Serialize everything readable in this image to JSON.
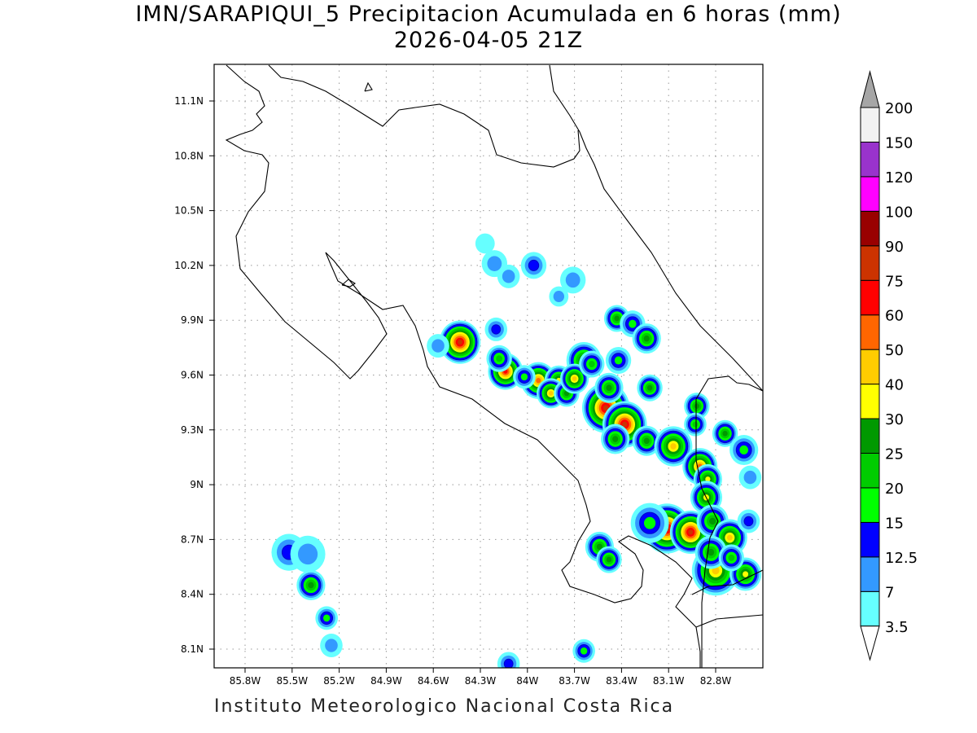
{
  "title": "IMN/SARAPIQUI_5 Precipitacion Acumulada en 6 horas (mm)",
  "subtitle": "2026-04-05 21Z",
  "footer": "Instituto Meteorologico Nacional Costa Rica",
  "map": {
    "lon_ticks": [
      "85.8W",
      "85.5W",
      "85.2W",
      "84.9W",
      "84.6W",
      "84.3W",
      "84W",
      "83.7W",
      "83.4W",
      "83.1W",
      "82.8W"
    ],
    "lat_ticks": [
      "11.1N",
      "10.8N",
      "10.5N",
      "10.2N",
      "9.9N",
      "9.6N",
      "9.3N",
      "9N",
      "8.7N",
      "8.4N",
      "8.1N"
    ],
    "lon_range": [
      -85.97,
      -82.43
    ],
    "lat_range": [
      8.0,
      11.3
    ],
    "cells": [
      {
        "lon": -84.43,
        "lat": 9.78,
        "peak": 75,
        "size": 0.09
      },
      {
        "lon": -84.57,
        "lat": 9.76,
        "peak": 7,
        "size": 0.03
      },
      {
        "lon": -84.14,
        "lat": 9.62,
        "peak": 60,
        "size": 0.07
      },
      {
        "lon": -84.18,
        "lat": 9.69,
        "peak": 20,
        "size": 0.04
      },
      {
        "lon": -83.93,
        "lat": 9.57,
        "peak": 50,
        "size": 0.07
      },
      {
        "lon": -83.8,
        "lat": 9.57,
        "peak": 30,
        "size": 0.05
      },
      {
        "lon": -83.85,
        "lat": 9.5,
        "peak": 40,
        "size": 0.05
      },
      {
        "lon": -83.75,
        "lat": 9.5,
        "peak": 25,
        "size": 0.04
      },
      {
        "lon": -83.64,
        "lat": 9.68,
        "peak": 30,
        "size": 0.07
      },
      {
        "lon": -83.7,
        "lat": 9.58,
        "peak": 40,
        "size": 0.05
      },
      {
        "lon": -83.59,
        "lat": 9.66,
        "peak": 20,
        "size": 0.04
      },
      {
        "lon": -83.5,
        "lat": 9.42,
        "peak": 75,
        "size": 0.11
      },
      {
        "lon": -83.38,
        "lat": 9.33,
        "peak": 75,
        "size": 0.1
      },
      {
        "lon": -83.44,
        "lat": 9.25,
        "peak": 25,
        "size": 0.05
      },
      {
        "lon": -83.48,
        "lat": 9.53,
        "peak": 25,
        "size": 0.05
      },
      {
        "lon": -83.42,
        "lat": 9.68,
        "peak": 15,
        "size": 0.04
      },
      {
        "lon": -83.43,
        "lat": 9.91,
        "peak": 25,
        "size": 0.04
      },
      {
        "lon": -83.33,
        "lat": 9.88,
        "peak": 15,
        "size": 0.04
      },
      {
        "lon": -83.24,
        "lat": 9.8,
        "peak": 25,
        "size": 0.05
      },
      {
        "lon": -83.22,
        "lat": 9.53,
        "peak": 25,
        "size": 0.04
      },
      {
        "lon": -83.24,
        "lat": 9.24,
        "peak": 25,
        "size": 0.05
      },
      {
        "lon": -83.07,
        "lat": 9.21,
        "peak": 40,
        "size": 0.08
      },
      {
        "lon": -82.9,
        "lat": 9.1,
        "peak": 50,
        "size": 0.07
      },
      {
        "lon": -82.92,
        "lat": 9.43,
        "peak": 25,
        "size": 0.04
      },
      {
        "lon": -82.93,
        "lat": 9.33,
        "peak": 20,
        "size": 0.03
      },
      {
        "lon": -82.74,
        "lat": 9.28,
        "peak": 25,
        "size": 0.04
      },
      {
        "lon": -82.85,
        "lat": 9.03,
        "peak": 30,
        "size": 0.05
      },
      {
        "lon": -82.86,
        "lat": 8.93,
        "peak": 30,
        "size": 0.06
      },
      {
        "lon": -83.11,
        "lat": 8.76,
        "peak": 75,
        "size": 0.11
      },
      {
        "lon": -82.96,
        "lat": 8.74,
        "peak": 75,
        "size": 0.09
      },
      {
        "lon": -83.22,
        "lat": 8.79,
        "peak": 15,
        "size": 0.08
      },
      {
        "lon": -82.82,
        "lat": 8.8,
        "peak": 25,
        "size": 0.06
      },
      {
        "lon": -82.71,
        "lat": 8.71,
        "peak": 40,
        "size": 0.07
      },
      {
        "lon": -82.8,
        "lat": 8.53,
        "peak": 40,
        "size": 0.11
      },
      {
        "lon": -82.83,
        "lat": 8.63,
        "peak": 25,
        "size": 0.06
      },
      {
        "lon": -82.61,
        "lat": 8.51,
        "peak": 30,
        "size": 0.06
      },
      {
        "lon": -82.7,
        "lat": 8.6,
        "peak": 20,
        "size": 0.04
      },
      {
        "lon": -82.62,
        "lat": 9.19,
        "peak": 15,
        "size": 0.05
      },
      {
        "lon": -82.59,
        "lat": 8.8,
        "peak": 12.5,
        "size": 0.03
      },
      {
        "lon": -82.58,
        "lat": 9.04,
        "peak": 7,
        "size": 0.03
      },
      {
        "lon": -83.54,
        "lat": 8.66,
        "peak": 25,
        "size": 0.05
      },
      {
        "lon": -83.48,
        "lat": 8.59,
        "peak": 25,
        "size": 0.04
      },
      {
        "lon": -85.52,
        "lat": 8.63,
        "peak": 12.5,
        "size": 0.07
      },
      {
        "lon": -85.4,
        "lat": 8.62,
        "peak": 7,
        "size": 0.07
      },
      {
        "lon": -85.38,
        "lat": 8.45,
        "peak": 25,
        "size": 0.05
      },
      {
        "lon": -85.28,
        "lat": 8.27,
        "peak": 15,
        "size": 0.03
      },
      {
        "lon": -85.25,
        "lat": 8.12,
        "peak": 7,
        "size": 0.03
      },
      {
        "lon": -83.64,
        "lat": 8.09,
        "peak": 15,
        "size": 0.03
      },
      {
        "lon": -84.12,
        "lat": 8.02,
        "peak": 12.5,
        "size": 0.03
      },
      {
        "lon": -84.21,
        "lat": 10.21,
        "peak": 7,
        "size": 0.04
      },
      {
        "lon": -83.96,
        "lat": 10.2,
        "peak": 12.5,
        "size": 0.04
      },
      {
        "lon": -84.12,
        "lat": 10.14,
        "peak": 7,
        "size": 0.03
      },
      {
        "lon": -83.71,
        "lat": 10.12,
        "peak": 7,
        "size": 0.04
      },
      {
        "lon": -83.8,
        "lat": 10.03,
        "peak": 7,
        "size": 0.02
      },
      {
        "lon": -84.27,
        "lat": 10.32,
        "peak": 3.5,
        "size": 0.02
      },
      {
        "lon": -84.2,
        "lat": 9.85,
        "peak": 12.5,
        "size": 0.03
      },
      {
        "lon": -84.02,
        "lat": 9.59,
        "peak": 15,
        "size": 0.03
      }
    ]
  },
  "colorbar": {
    "labels": [
      "3.5",
      "7",
      "12.5",
      "15",
      "20",
      "25",
      "30",
      "40",
      "50",
      "60",
      "75",
      "90",
      "100",
      "120",
      "150",
      "200"
    ],
    "colors": [
      "#66ffff",
      "#3399ff",
      "#0000ff",
      "#00ff00",
      "#00cc00",
      "#009900",
      "#ffff00",
      "#ffcc00",
      "#ff6600",
      "#ff0000",
      "#cc3300",
      "#990000",
      "#ff00ff",
      "#9933cc",
      "#f2f2f2"
    ],
    "over_color": "#a6a6a6",
    "under_color": "#ffffff"
  }
}
